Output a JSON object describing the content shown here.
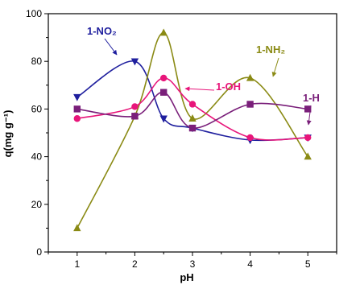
{
  "chart_data": {
    "type": "scatter",
    "title": "",
    "xlabel": "pH",
    "ylabel": "q(mg g⁻¹)",
    "xlim": [
      0.5,
      5.5
    ],
    "ylim": [
      0,
      100
    ],
    "xticks": [
      1,
      2,
      3,
      4,
      5
    ],
    "yticks": [
      0,
      20,
      40,
      60,
      80,
      100
    ],
    "x_tick_labels": [
      "1",
      "2",
      "3",
      "4",
      "5"
    ],
    "y_tick_labels": [
      "0",
      "20",
      "40",
      "60",
      "80",
      "100"
    ],
    "grid": false,
    "legend": "none",
    "series": [
      {
        "name": "1-NO₂",
        "color": "#1f1f9e",
        "marker": "triangle-down",
        "x": [
          1,
          2,
          2.5,
          3,
          4,
          5
        ],
        "y": [
          65,
          80,
          56,
          52,
          47,
          48
        ]
      },
      {
        "name": "1-NH₂",
        "color": "#8a8a14",
        "marker": "triangle-up",
        "x": [
          1,
          2,
          2.5,
          3,
          4,
          5
        ],
        "y": [
          10,
          57,
          92,
          56,
          73,
          40
        ]
      },
      {
        "name": "1-OH",
        "color": "#e8157a",
        "marker": "circle",
        "x": [
          1,
          2,
          2.5,
          3,
          4,
          5
        ],
        "y": [
          56,
          61,
          73,
          62,
          48,
          48
        ]
      },
      {
        "name": "1-H",
        "color": "#7a1f7a",
        "marker": "square",
        "x": [
          1,
          2,
          2.5,
          3,
          4,
          5
        ],
        "y": [
          60,
          57,
          67,
          52,
          62,
          60
        ]
      }
    ]
  }
}
